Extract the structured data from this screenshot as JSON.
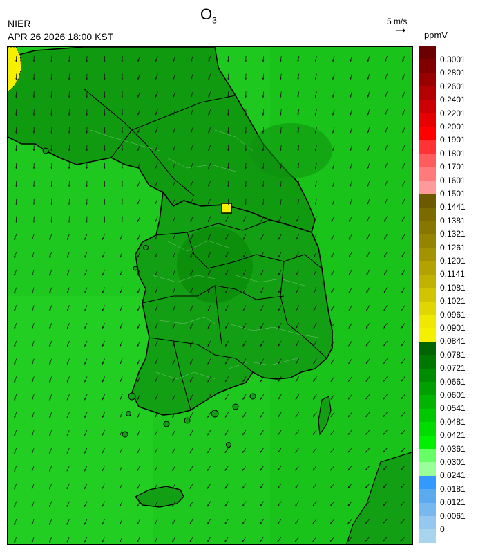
{
  "header": {
    "agency": "NIER",
    "datetime": "APR 26 2026 18:00 KST",
    "title_main": "O",
    "title_sub": "3",
    "wind_reference": "5 m/s",
    "unit": "ppmV"
  },
  "legend": {
    "labels": [
      "0.3001",
      "0.2801",
      "0.2601",
      "0.2401",
      "0.2201",
      "0.2001",
      "0.1901",
      "0.1801",
      "0.1701",
      "0.1601",
      "0.1501",
      "0.1441",
      "0.1381",
      "0.1321",
      "0.1261",
      "0.1201",
      "0.1141",
      "0.1081",
      "0.1021",
      "0.0961",
      "0.0901",
      "0.0841",
      "0.0781",
      "0.0721",
      "0.0661",
      "0.0601",
      "0.0541",
      "0.0481",
      "0.0421",
      "0.0361",
      "0.0301",
      "0.0241",
      "0.0181",
      "0.0121",
      "0.0061",
      "0"
    ],
    "colors": [
      "#6b0000",
      "#800000",
      "#990000",
      "#b30000",
      "#cc0000",
      "#e60000",
      "#ff0000",
      "#ff3333",
      "#ff5c5c",
      "#ff7a7a",
      "#ff9a9a",
      "#6b5a00",
      "#7a6a00",
      "#877700",
      "#948400",
      "#a39300",
      "#b3a200",
      "#c2b200",
      "#d1c400",
      "#e0d600",
      "#f0e800",
      "#f5f000",
      "#006400",
      "#007800",
      "#008c00",
      "#00a000",
      "#00b400",
      "#00c800",
      "#00dc00",
      "#00f000",
      "#66ff66",
      "#99ff99",
      "#3399ff",
      "#5aaaf0",
      "#78b8ee",
      "#95c8ee",
      "#a9d4ee"
    ]
  },
  "map": {
    "base_color": "#1ec81e",
    "land_tint": "#14a514",
    "hotspot_color": "#f5f000",
    "wind_field_direction": "mostly southward with westward component over the south and east",
    "icons": [
      "wind-arrow-icon"
    ]
  }
}
